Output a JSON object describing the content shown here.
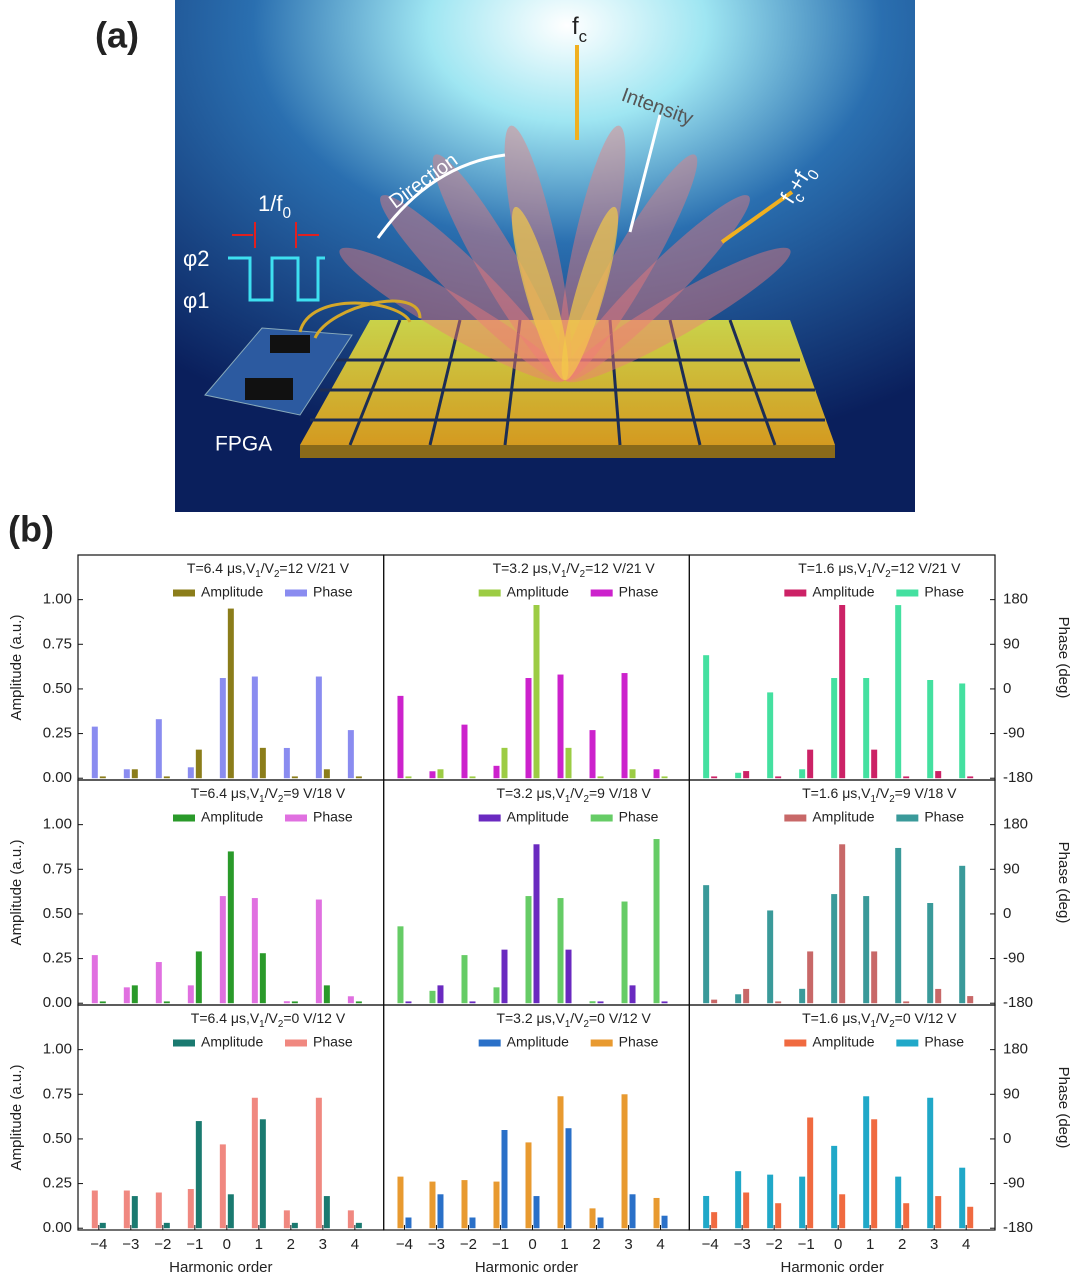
{
  "panel_labels": [
    "(a)",
    "(b)"
  ],
  "illustration": {
    "fc": [
      "f",
      "c"
    ],
    "intensity": "Intensity",
    "direction": "Direction",
    "fcf0": [
      "f",
      "c",
      "+f",
      "0"
    ],
    "period": [
      "1/f",
      "0"
    ],
    "phi2": "φ2",
    "phi1": "φ1",
    "fpga": "FPGA"
  },
  "chart_data": [
    {
      "type": "bar",
      "title": [
        "T=6.4 μs,V",
        "1",
        "/V",
        "2",
        "=12 V/21 V"
      ],
      "legend": "upper right",
      "x": [
        -4,
        -3,
        -2,
        -1,
        0,
        1,
        2,
        3,
        4
      ],
      "xlim": [
        -4.65,
        4.9
      ],
      "ylim": [
        -0.01,
        1.25
      ],
      "y2lim": [
        -183.6,
        270
      ],
      "ylabel": "Amplitude (a.u.)",
      "yticks": [
        {
          "value": 0,
          "label": "0.00"
        },
        0.25,
        {
          "value": 0.5,
          "label": "0.50"
        },
        0.75,
        {
          "value": 1,
          "label": "1.00"
        }
      ],
      "series": [
        {
          "name": "Amplitude",
          "color": "#8b7d1a",
          "values": [
            0.01,
            0.05,
            0.01,
            0.16,
            0.95,
            0.17,
            0.01,
            0.05,
            0.01
          ]
        },
        {
          "name": "Phase",
          "color": "#8a8cf0",
          "axis": "y2",
          "values": [
            -76,
            -162,
            -61,
            -158,
            22,
            25,
            -119,
            25,
            -83
          ]
        }
      ]
    },
    {
      "type": "bar",
      "title": [
        "T=3.2 μs,V",
        "1",
        "/V",
        "2",
        "=12 V/21 V"
      ],
      "legend": "upper right",
      "x": [
        -4,
        -3,
        -2,
        -1,
        0,
        1,
        2,
        3,
        4
      ],
      "xlim": [
        -4.65,
        4.9
      ],
      "ylim": [
        -0.01,
        1.25
      ],
      "y2lim": [
        -183.6,
        270
      ],
      "series": [
        {
          "name": "Amplitude",
          "color": "#9ccc44",
          "values": [
            0.01,
            0.05,
            0.01,
            0.17,
            0.97,
            0.17,
            0.01,
            0.05,
            0.01
          ]
        },
        {
          "name": "Phase",
          "color": "#cc22cc",
          "axis": "y2",
          "values": [
            -14,
            -166,
            -72,
            -155,
            22,
            29,
            -83,
            32,
            -162
          ]
        }
      ]
    },
    {
      "type": "bar",
      "title": [
        "T=1.6 μs,V",
        "1",
        "/V",
        "2",
        "=12 V/21 V"
      ],
      "legend": "upper right",
      "x": [
        -4,
        -3,
        -2,
        -1,
        0,
        1,
        2,
        3,
        4
      ],
      "xlim": [
        -4.65,
        4.9
      ],
      "ylim": [
        -0.01,
        1.25
      ],
      "y2lim": [
        -183.6,
        270
      ],
      "y2label": "Phase (deg)",
      "y2ticks": [
        -180,
        -90,
        0,
        90,
        180
      ],
      "series": [
        {
          "name": "Amplitude",
          "color": "#cc2266",
          "values": [
            0.01,
            0.04,
            0.01,
            0.16,
            0.97,
            0.16,
            0.01,
            0.04,
            0.01
          ]
        },
        {
          "name": "Phase",
          "color": "#44e0a0",
          "axis": "y2",
          "values": [
            68,
            -169,
            -7,
            -162,
            22,
            22,
            169,
            18,
            11
          ]
        }
      ]
    },
    {
      "type": "bar",
      "title": [
        "T=6.4 μs,V",
        "1",
        "/V",
        "2",
        "=9 V/18 V"
      ],
      "legend": "upper right",
      "x": [
        -4,
        -3,
        -2,
        -1,
        0,
        1,
        2,
        3,
        4
      ],
      "xlim": [
        -4.65,
        4.9
      ],
      "ylim": [
        -0.01,
        1.25
      ],
      "y2lim": [
        -183.6,
        270
      ],
      "ylabel": "Amplitude (a.u.)",
      "yticks": [
        {
          "value": 0,
          "label": "0.00"
        },
        0.25,
        {
          "value": 0.5,
          "label": "0.50"
        },
        0.75,
        {
          "value": 1,
          "label": "1.00"
        }
      ],
      "series": [
        {
          "name": "Amplitude",
          "color": "#2a9a2a",
          "values": [
            0.01,
            0.1,
            0.01,
            0.29,
            0.85,
            0.28,
            0.01,
            0.1,
            0.01
          ]
        },
        {
          "name": "Phase",
          "color": "#e070e0",
          "axis": "y2",
          "values": [
            -83,
            -148,
            -97,
            -144,
            36,
            32,
            -176,
            29,
            -166
          ]
        }
      ]
    },
    {
      "type": "bar",
      "title": [
        "T=3.2 μs,V",
        "1",
        "/V",
        "2",
        "=9 V/18 V"
      ],
      "legend": "upper right",
      "x": [
        -4,
        -3,
        -2,
        -1,
        0,
        1,
        2,
        3,
        4
      ],
      "xlim": [
        -4.65,
        4.9
      ],
      "ylim": [
        -0.01,
        1.25
      ],
      "y2lim": [
        -183.6,
        270
      ],
      "series": [
        {
          "name": "Amplitude",
          "color": "#6a2ac0",
          "values": [
            0.01,
            0.1,
            0.01,
            0.3,
            0.89,
            0.3,
            0.01,
            0.1,
            0.01
          ]
        },
        {
          "name": "Phase",
          "color": "#66cc66",
          "axis": "y2",
          "values": [
            -25,
            -155,
            -83,
            -148,
            36,
            32,
            -176,
            25,
            151
          ]
        }
      ]
    },
    {
      "type": "bar",
      "title": [
        "T=1.6 μs,V",
        "1",
        "/V",
        "2",
        "=9 V/18 V"
      ],
      "legend": "upper right",
      "x": [
        -4,
        -3,
        -2,
        -1,
        0,
        1,
        2,
        3,
        4
      ],
      "xlim": [
        -4.65,
        4.9
      ],
      "ylim": [
        -0.01,
        1.25
      ],
      "y2lim": [
        -183.6,
        270
      ],
      "y2label": "Phase (deg)",
      "y2ticks": [
        -180,
        -90,
        0,
        90,
        180
      ],
      "series": [
        {
          "name": "Amplitude",
          "color": "#c86868",
          "values": [
            0.02,
            0.08,
            0.01,
            0.29,
            0.89,
            0.29,
            0.01,
            0.08,
            0.04
          ]
        },
        {
          "name": "Phase",
          "color": "#3a9a9a",
          "axis": "y2",
          "values": [
            58,
            -162,
            7,
            -151,
            40,
            36,
            133,
            22,
            97
          ]
        }
      ]
    },
    {
      "type": "bar",
      "title": [
        "T=6.4 μs,V",
        "1",
        "/V",
        "2",
        "=0 V/12 V"
      ],
      "legend": "upper right",
      "x": [
        -4,
        -3,
        -2,
        -1,
        0,
        1,
        2,
        3,
        4
      ],
      "xlim": [
        -4.65,
        4.9
      ],
      "ylim": [
        -0.01,
        1.25
      ],
      "y2lim": [
        -183.6,
        270
      ],
      "ylabel": "Amplitude (a.u.)",
      "xlabel": "Harmonic order",
      "yticks": [
        {
          "value": 0,
          "label": "0.00"
        },
        0.25,
        {
          "value": 0.5,
          "label": "0.50"
        },
        0.75,
        {
          "value": 1,
          "label": "1.00"
        }
      ],
      "xticks": [
        {
          "value": -4,
          "label": "−4"
        },
        {
          "value": -3,
          "label": "−3"
        },
        {
          "value": -2,
          "label": "−2"
        },
        {
          "value": -1,
          "label": "−1"
        },
        0,
        1,
        2,
        3,
        4
      ],
      "series": [
        {
          "name": "Amplitude",
          "color": "#1a7a70",
          "values": [
            0.03,
            0.18,
            0.03,
            0.6,
            0.19,
            0.61,
            0.03,
            0.18,
            0.03
          ]
        },
        {
          "name": "Phase",
          "color": "#f08880",
          "axis": "y2",
          "values": [
            -104,
            -104,
            -108,
            -101,
            -11,
            83,
            -144,
            83,
            -144
          ]
        }
      ]
    },
    {
      "type": "bar",
      "title": [
        "T=3.2 μs,V",
        "1",
        "/V",
        "2",
        "=0 V/12 V"
      ],
      "legend": "upper right",
      "x": [
        -4,
        -3,
        -2,
        -1,
        0,
        1,
        2,
        3,
        4
      ],
      "xlim": [
        -4.65,
        4.9
      ],
      "ylim": [
        -0.01,
        1.25
      ],
      "y2lim": [
        -183.6,
        270
      ],
      "xlabel": "Harmonic order",
      "xticks": [
        {
          "value": -4,
          "label": "−4"
        },
        {
          "value": -3,
          "label": "−3"
        },
        {
          "value": -2,
          "label": "−2"
        },
        {
          "value": -1,
          "label": "−1"
        },
        0,
        1,
        2,
        3,
        4
      ],
      "series": [
        {
          "name": "Amplitude",
          "color": "#2a70c8",
          "values": [
            0.06,
            0.19,
            0.06,
            0.55,
            0.18,
            0.56,
            0.06,
            0.19,
            0.07
          ]
        },
        {
          "name": "Phase",
          "color": "#e89a30",
          "axis": "y2",
          "values": [
            -76,
            -86,
            -83,
            -86,
            -7,
            86,
            -140,
            90,
            -119
          ]
        }
      ]
    },
    {
      "type": "bar",
      "title": [
        "T=1.6 μs,V",
        "1",
        "/V",
        "2",
        "=0 V/12 V"
      ],
      "legend": "upper right",
      "x": [
        -4,
        -3,
        -2,
        -1,
        0,
        1,
        2,
        3,
        4
      ],
      "xlim": [
        -4.65,
        4.9
      ],
      "ylim": [
        -0.01,
        1.25
      ],
      "y2lim": [
        -183.6,
        270
      ],
      "xlabel": "Harmonic order",
      "y2label": "Phase (deg)",
      "y2ticks": [
        -180,
        -90,
        0,
        90,
        180
      ],
      "xticks": [
        {
          "value": -4,
          "label": "−4"
        },
        {
          "value": -3,
          "label": "−3"
        },
        {
          "value": -2,
          "label": "−2"
        },
        {
          "value": -1,
          "label": "−1"
        },
        0,
        1,
        2,
        3,
        4
      ],
      "series": [
        {
          "name": "Amplitude",
          "color": "#f06a40",
          "values": [
            0.09,
            0.2,
            0.14,
            0.62,
            0.19,
            0.61,
            0.14,
            0.18,
            0.12
          ]
        },
        {
          "name": "Phase",
          "color": "#20a8c8",
          "axis": "y2",
          "values": [
            -115,
            -65,
            -72,
            -76,
            -14,
            86,
            -76,
            83,
            -58
          ]
        }
      ]
    }
  ]
}
